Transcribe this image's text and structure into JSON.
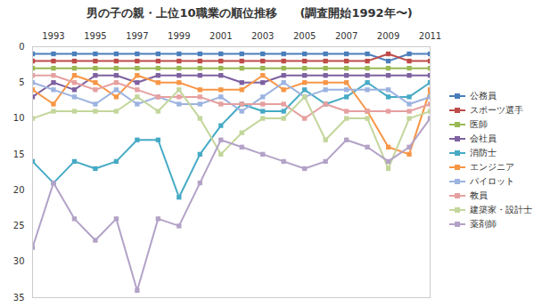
{
  "chart_data": {
    "type": "line",
    "title": "男の子の親・上位10職業の順位推移　　(調査開始1992年〜)",
    "x": [
      1992,
      1993,
      1994,
      1995,
      1996,
      1997,
      1998,
      1999,
      2000,
      2001,
      2002,
      2003,
      2004,
      2005,
      2006,
      2007,
      2008,
      2009,
      2010,
      2011
    ],
    "xlim": [
      1992,
      2011
    ],
    "xticks": [
      1993,
      1995,
      1997,
      1999,
      2001,
      2003,
      2005,
      2007,
      2009,
      2011
    ],
    "ylim": [
      0,
      35
    ],
    "yticks": [
      0,
      5,
      10,
      15,
      20,
      25,
      30,
      35
    ],
    "grid": false,
    "legend": "right",
    "marker": "square",
    "series": [
      {
        "name": "公務員",
        "color": "#4a7ebb",
        "values": [
          1,
          1,
          1,
          1,
          1,
          1,
          1,
          1,
          1,
          1,
          1,
          1,
          1,
          1,
          1,
          1,
          1,
          2,
          1,
          1
        ]
      },
      {
        "name": "スポーツ選手",
        "color": "#be4b48",
        "values": [
          2,
          2,
          2,
          2,
          2,
          2,
          2,
          2,
          2,
          2,
          2,
          2,
          2,
          2,
          2,
          2,
          2,
          1,
          2,
          2
        ]
      },
      {
        "name": "医師",
        "color": "#98b954",
        "values": [
          3,
          3,
          3,
          3,
          3,
          3,
          3,
          3,
          3,
          3,
          3,
          3,
          3,
          3,
          3,
          3,
          3,
          3,
          3,
          3
        ]
      },
      {
        "name": "会社員",
        "color": "#7d60a0",
        "values": [
          7,
          5,
          6,
          4,
          4,
          5,
          4,
          4,
          4,
          4,
          5,
          5,
          4,
          4,
          4,
          4,
          4,
          4,
          4,
          4
        ]
      },
      {
        "name": "消防士",
        "color": "#46aac5",
        "values": [
          16,
          19,
          16,
          17,
          16,
          13,
          13,
          21,
          15,
          11,
          8,
          9,
          9,
          6,
          8,
          7,
          5,
          7,
          7,
          5
        ]
      },
      {
        "name": "エンジニア",
        "color": "#f79646",
        "values": [
          6,
          8,
          4,
          5,
          7,
          4,
          5,
          5,
          6,
          6,
          6,
          4,
          6,
          5,
          5,
          5,
          9,
          14,
          15,
          6
        ]
      },
      {
        "name": "パイロット",
        "color": "#9cb3e0",
        "values": [
          5,
          6,
          7,
          8,
          6,
          8,
          7,
          8,
          8,
          7,
          9,
          7,
          5,
          7,
          6,
          6,
          6,
          6,
          8,
          7
        ]
      },
      {
        "name": "教員",
        "color": "#e6a0a0",
        "values": [
          4,
          4,
          5,
          6,
          5,
          6,
          7,
          7,
          7,
          8,
          8,
          8,
          8,
          10,
          8,
          9,
          9,
          9,
          9,
          8
        ]
      },
      {
        "name": "建築家・設計士",
        "color": "#c3d69b",
        "values": [
          10,
          9,
          9,
          9,
          9,
          7,
          9,
          6,
          10,
          15,
          12,
          10,
          10,
          7,
          13,
          10,
          10,
          17,
          10,
          9
        ]
      },
      {
        "name": "薬剤師",
        "color": "#b3a2c7",
        "values": [
          28,
          19,
          24,
          27,
          24,
          34,
          24,
          25,
          19,
          13,
          14,
          15,
          16,
          17,
          16,
          13,
          14,
          16,
          14,
          10
        ]
      }
    ]
  }
}
